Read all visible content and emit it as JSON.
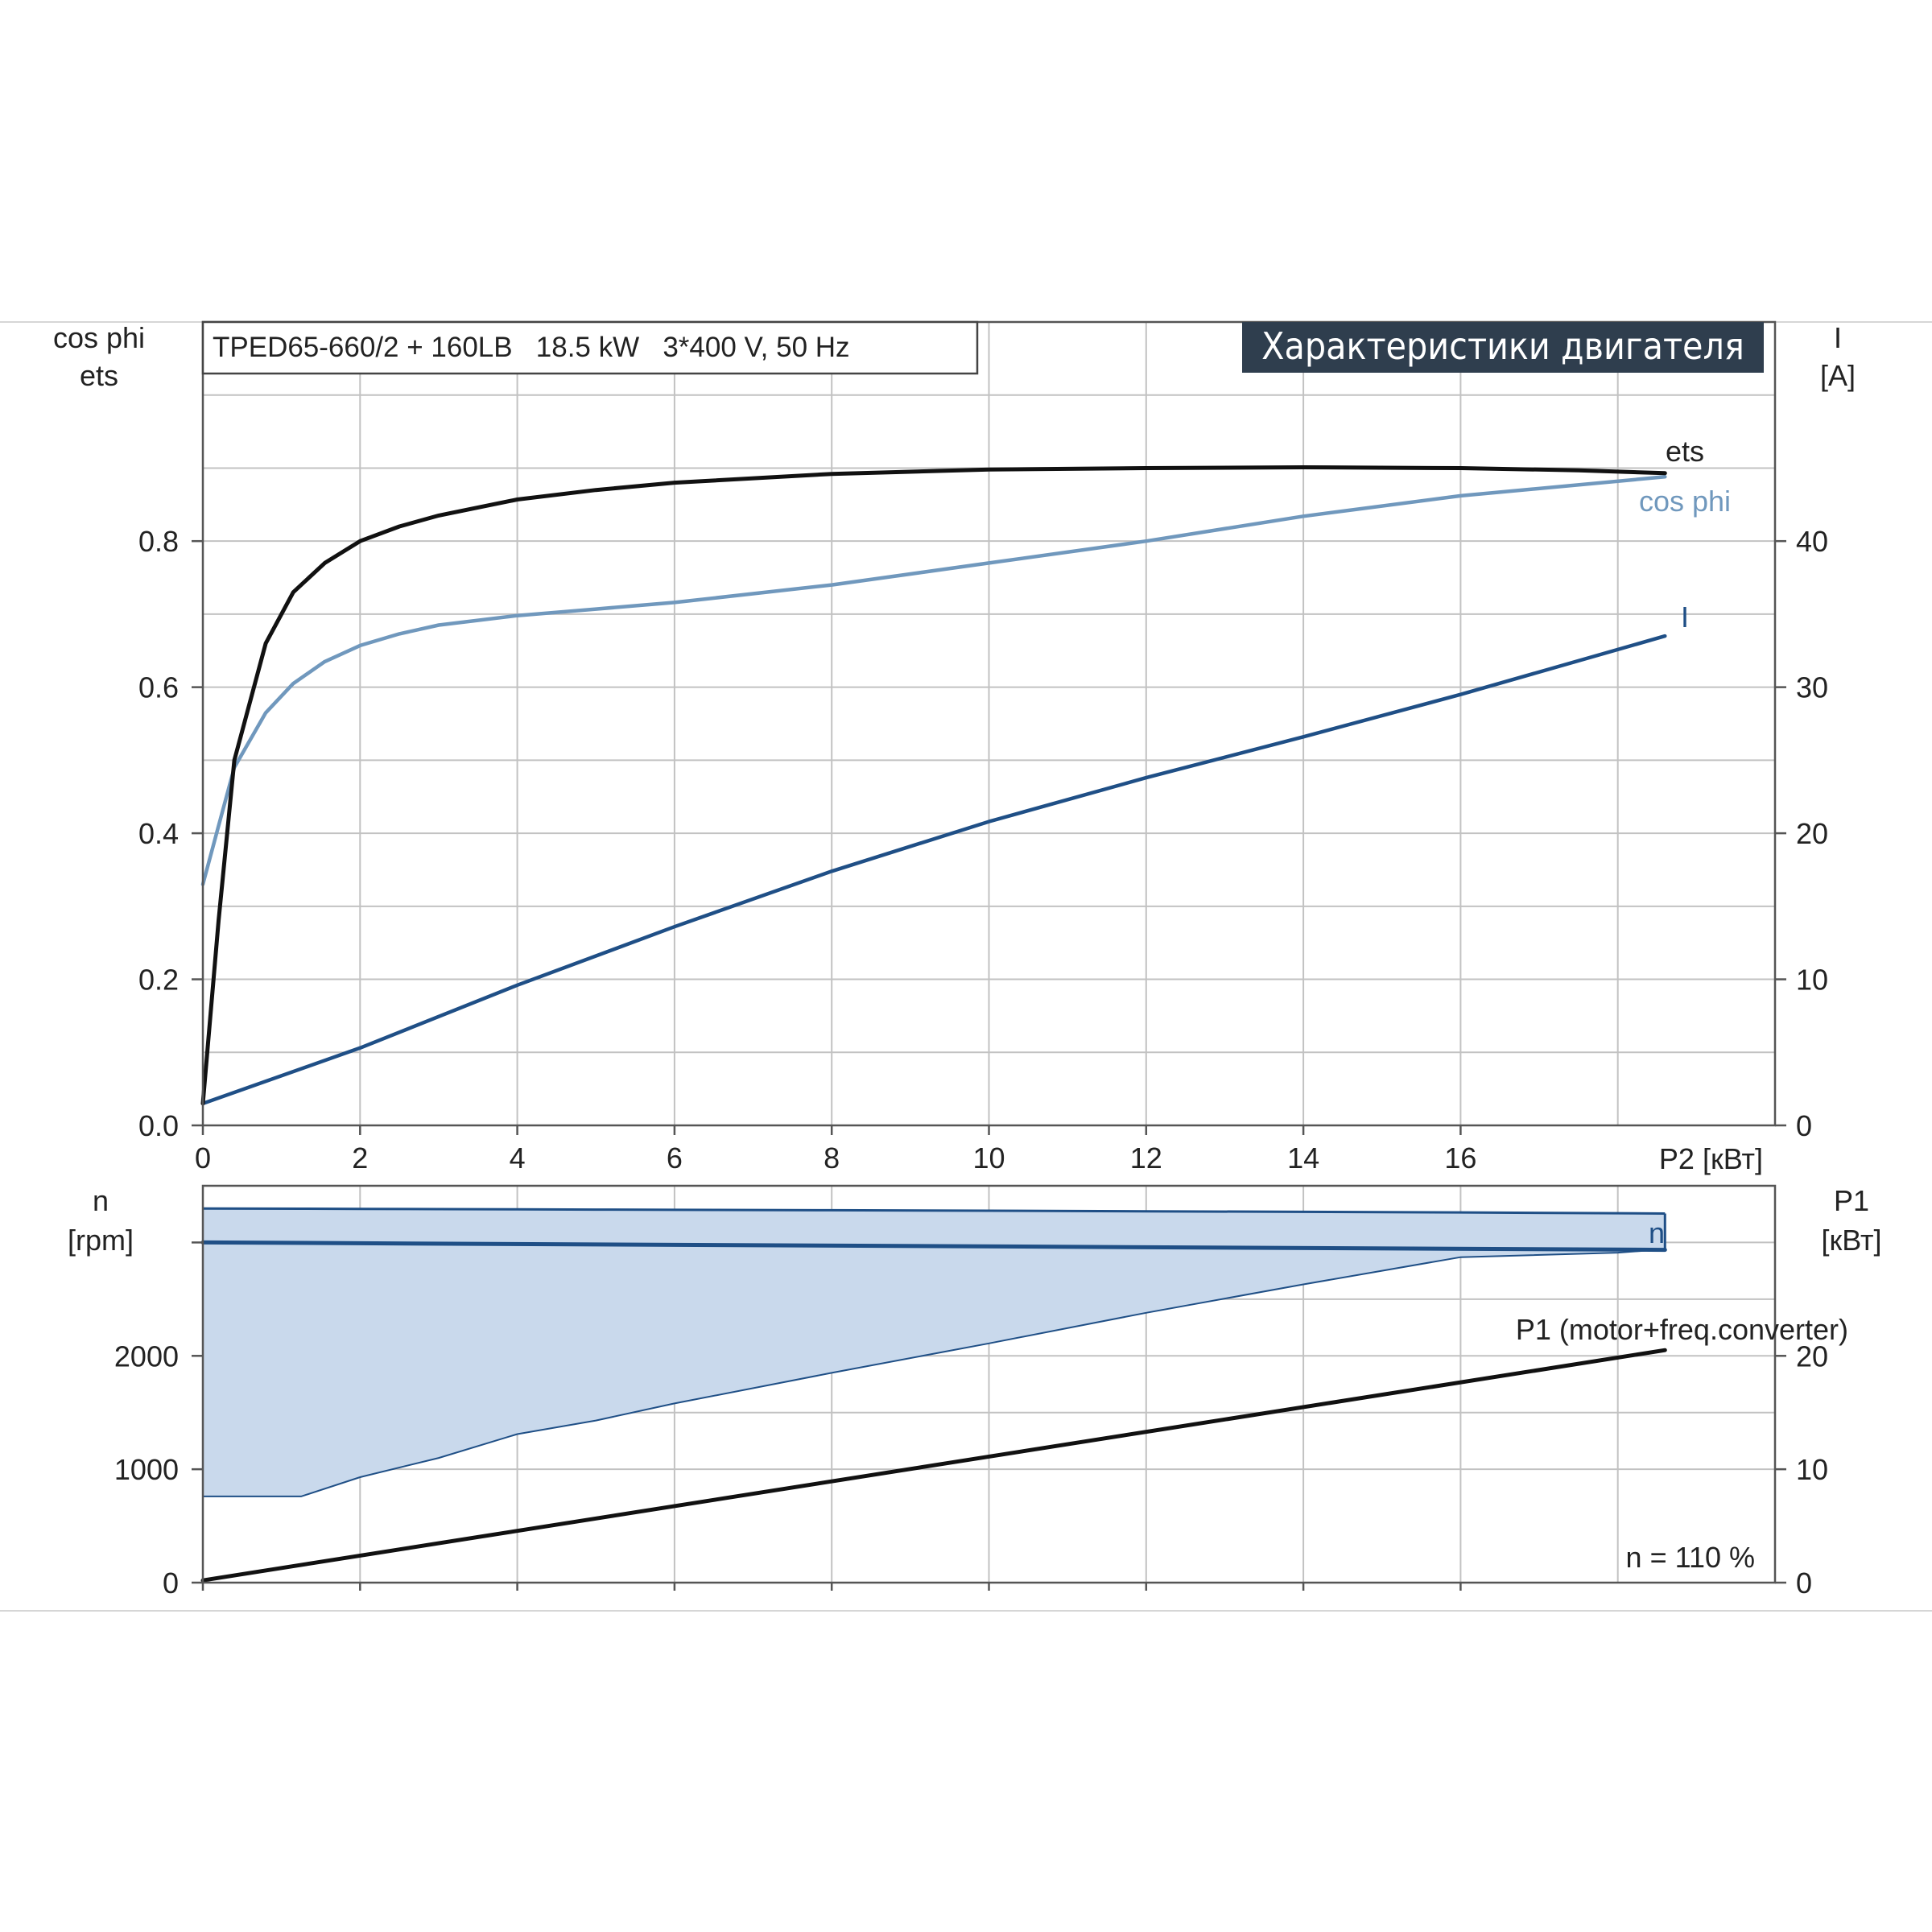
{
  "chart_data": [
    {
      "type": "line",
      "title": "TPED65-660/2 + 160LB   18.5 kW   3*400 V, 50 Hz",
      "banner": "Характеристики двигателя",
      "xlabel": "P2 [кВт]",
      "ylabel_left": [
        "cos phi",
        "ets"
      ],
      "ylabel_right": [
        "I",
        "[A]"
      ],
      "xlim": [
        0,
        20
      ],
      "ylim_left": [
        0,
        1.1
      ],
      "ylim_right": [
        0,
        55
      ],
      "x_ticks": [
        "0",
        "2",
        "4",
        "6",
        "8",
        "10",
        "12",
        "14",
        "16"
      ],
      "y_left_ticks": [
        "0.0",
        "0.2",
        "0.4",
        "0.6",
        "0.8"
      ],
      "y_right_ticks": [
        "0",
        "10",
        "20",
        "30",
        "40"
      ],
      "grid": true,
      "series": [
        {
          "name": "ets",
          "axis": "left",
          "color": "#111111",
          "x": [
            0,
            0.2,
            0.4,
            0.8,
            1.15,
            1.55,
            2.0,
            2.5,
            3.0,
            4.0,
            5.0,
            6.0,
            8.0,
            10.0,
            12.0,
            14.0,
            16.0,
            17.5,
            18.6
          ],
          "y": [
            0.03,
            0.28,
            0.5,
            0.66,
            0.73,
            0.77,
            0.8,
            0.82,
            0.835,
            0.857,
            0.87,
            0.88,
            0.892,
            0.898,
            0.9,
            0.901,
            0.9,
            0.897,
            0.893
          ]
        },
        {
          "name": "cos phi",
          "axis": "left",
          "color": "#7098bd",
          "x": [
            0,
            0.2,
            0.4,
            0.8,
            1.15,
            1.55,
            2.0,
            2.5,
            3.0,
            4.0,
            5.0,
            6.0,
            8.0,
            10.0,
            12.0,
            14.0,
            16.0,
            18.6
          ],
          "y": [
            0.33,
            0.41,
            0.49,
            0.565,
            0.605,
            0.635,
            0.657,
            0.673,
            0.685,
            0.698,
            0.707,
            0.716,
            0.74,
            0.77,
            0.8,
            0.834,
            0.862,
            0.888
          ]
        },
        {
          "name": "I",
          "axis": "right",
          "color": "#1f4f86",
          "x": [
            0,
            2,
            4,
            6,
            8,
            10,
            12,
            14,
            16,
            18.6
          ],
          "y": [
            1.5,
            5.3,
            9.6,
            13.6,
            17.4,
            20.8,
            23.8,
            26.6,
            29.5,
            33.5
          ]
        }
      ]
    },
    {
      "type": "line",
      "ylabel_left": [
        "n",
        "[rpm]"
      ],
      "ylabel_right": [
        "P1",
        "[кВт]"
      ],
      "xlim": [
        0,
        20
      ],
      "ylim_left": [
        0,
        3500
      ],
      "ylim_right": [
        0,
        35
      ],
      "y_left_ticks": [
        "0",
        "1000",
        "2000"
      ],
      "y_right_ticks": [
        "0",
        "10",
        "20"
      ],
      "grid": true,
      "annotation": "n = 110 %",
      "band": {
        "color": "#c9d9ec",
        "edge_color": "#1f4f86",
        "x": [
          0,
          1.25,
          2,
          3,
          4,
          5,
          6,
          8,
          10,
          12,
          14,
          16,
          18,
          18.6
        ],
        "upper": [
          3300,
          3298,
          3296,
          3294,
          3292,
          3290,
          3288,
          3284,
          3280,
          3275,
          3270,
          3265,
          3258,
          3255
        ],
        "lower": [
          760,
          760,
          930,
          1100,
          1310,
          1430,
          1580,
          1850,
          2110,
          2380,
          2630,
          2870,
          2910,
          2940
        ]
      },
      "series": [
        {
          "name": "n",
          "axis": "left",
          "color": "#1f4f86",
          "x": [
            0,
            18.6
          ],
          "y": [
            3000,
            2935
          ]
        },
        {
          "name": "P1 (motor+freq.converter)",
          "axis": "right",
          "color": "#111111",
          "x": [
            0,
            18.6
          ],
          "y": [
            0.2,
            20.5
          ]
        }
      ]
    }
  ]
}
